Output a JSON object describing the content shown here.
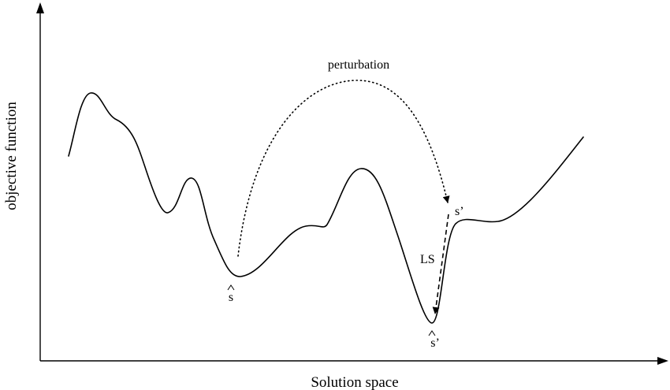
{
  "axes": {
    "x_label": "Solution space",
    "y_label": "objective function"
  },
  "annotations": {
    "perturbation": "perturbation",
    "local_search": "LS",
    "s_hat": "s",
    "s_prime": "s’",
    "s_hat_prime": "s’"
  }
}
